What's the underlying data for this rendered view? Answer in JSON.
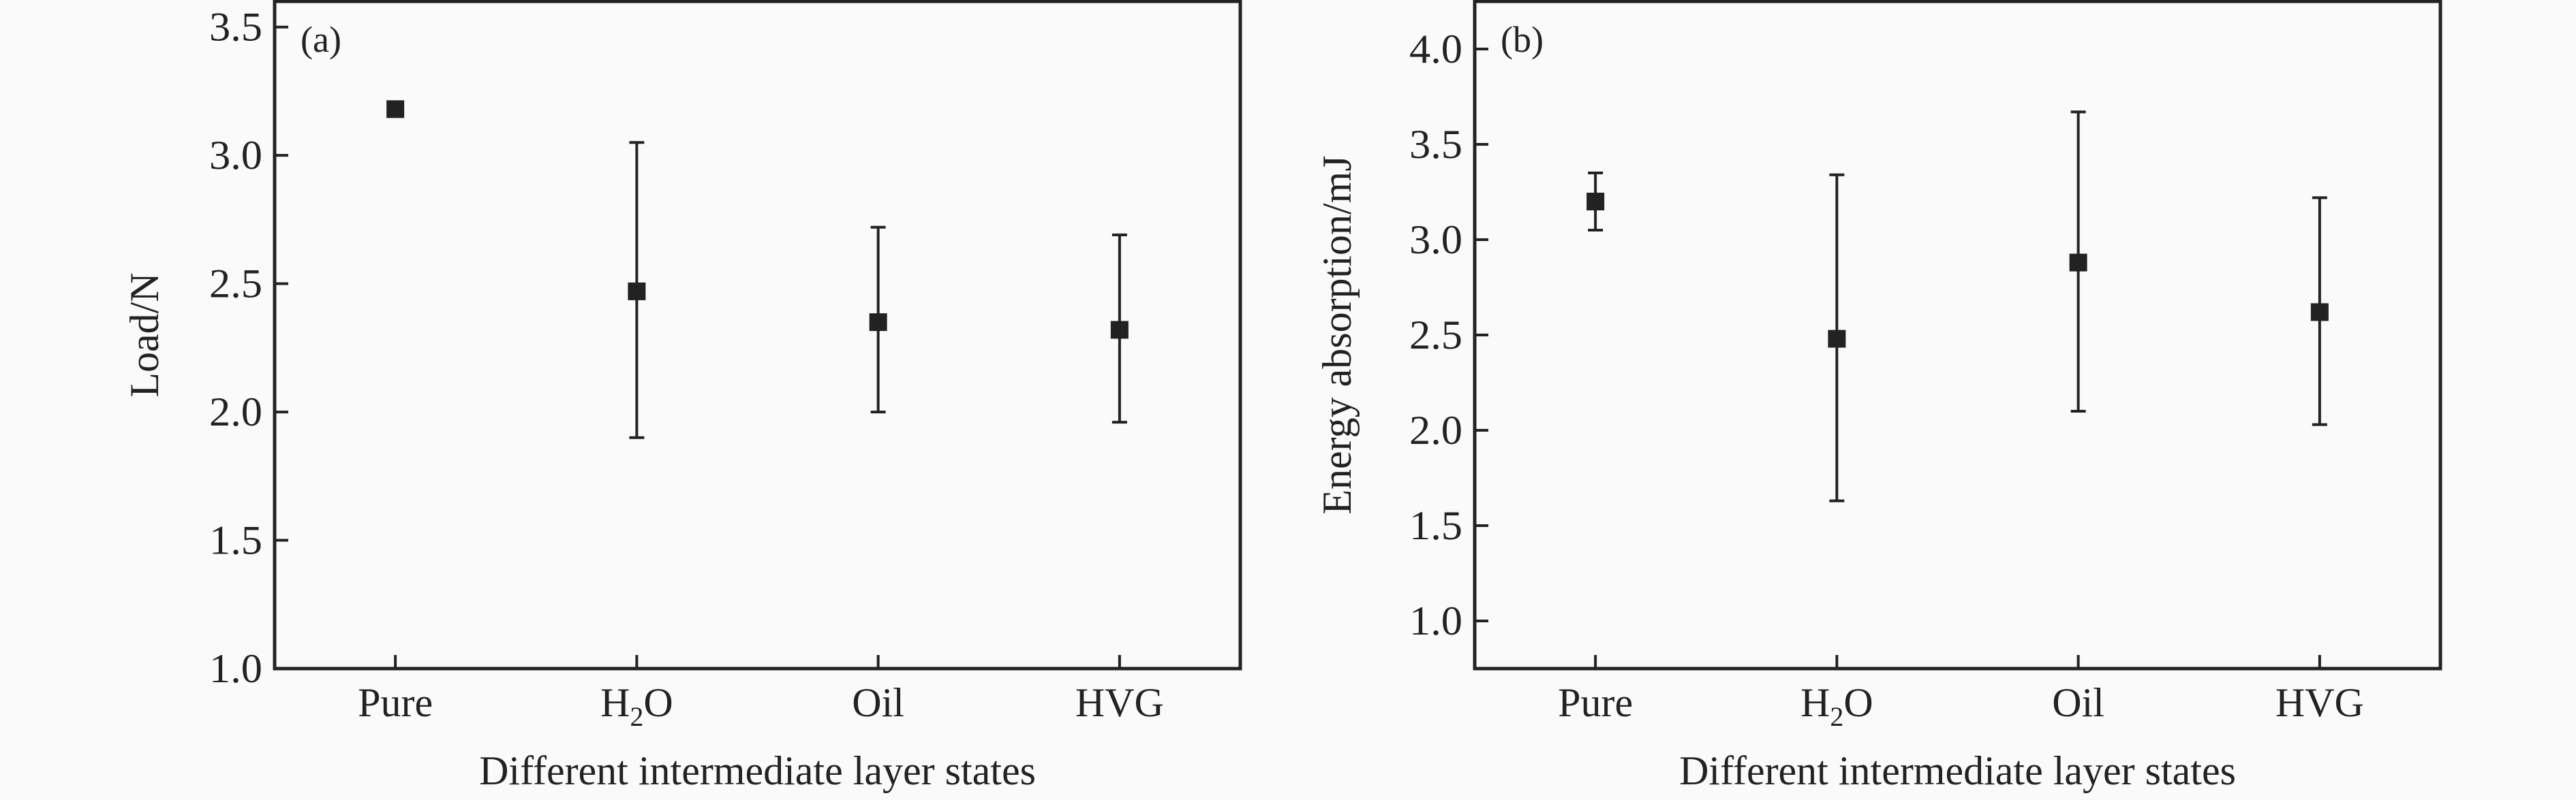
{
  "colors": {
    "ink": "#222222",
    "background": "#fafafa"
  },
  "chart_data": [
    {
      "type": "scatter",
      "panel_label": "(a)",
      "categories": [
        "Pure",
        "H2O",
        "Oil",
        "HVG"
      ],
      "category_display": [
        {
          "main": "Pure",
          "sub": ""
        },
        {
          "main": "H",
          "sub": "2",
          "tail": "O"
        },
        {
          "main": "Oil",
          "sub": ""
        },
        {
          "main": "HVG",
          "sub": ""
        }
      ],
      "values": [
        3.18,
        2.47,
        2.35,
        2.32
      ],
      "error_upper": [
        null,
        3.05,
        2.72,
        2.69
      ],
      "error_lower": [
        null,
        1.9,
        2.0,
        1.96
      ],
      "xlabel": "Different intermediate layer states",
      "ylabel": "Load/N",
      "ylim": [
        1.0,
        3.6
      ],
      "yticks": [
        "1.0",
        "1.5",
        "2.0",
        "2.5",
        "3.0",
        "3.5"
      ],
      "grid": false
    },
    {
      "type": "scatter",
      "panel_label": "(b)",
      "categories": [
        "Pure",
        "H2O",
        "Oil",
        "HVG"
      ],
      "category_display": [
        {
          "main": "Pure",
          "sub": ""
        },
        {
          "main": "H",
          "sub": "2",
          "tail": "O"
        },
        {
          "main": "Oil",
          "sub": ""
        },
        {
          "main": "HVG",
          "sub": ""
        }
      ],
      "values": [
        3.2,
        2.48,
        2.88,
        2.62
      ],
      "error_upper": [
        3.35,
        3.34,
        3.67,
        3.22
      ],
      "error_lower": [
        3.05,
        1.63,
        2.1,
        2.03
      ],
      "xlabel": "Different intermediate layer states",
      "ylabel": "Energy absorption/mJ",
      "ylim": [
        0.75,
        4.25
      ],
      "yticks": [
        "1.0",
        "1.5",
        "2.0",
        "2.5",
        "3.0",
        "3.5",
        "4.0"
      ],
      "grid": false
    }
  ]
}
